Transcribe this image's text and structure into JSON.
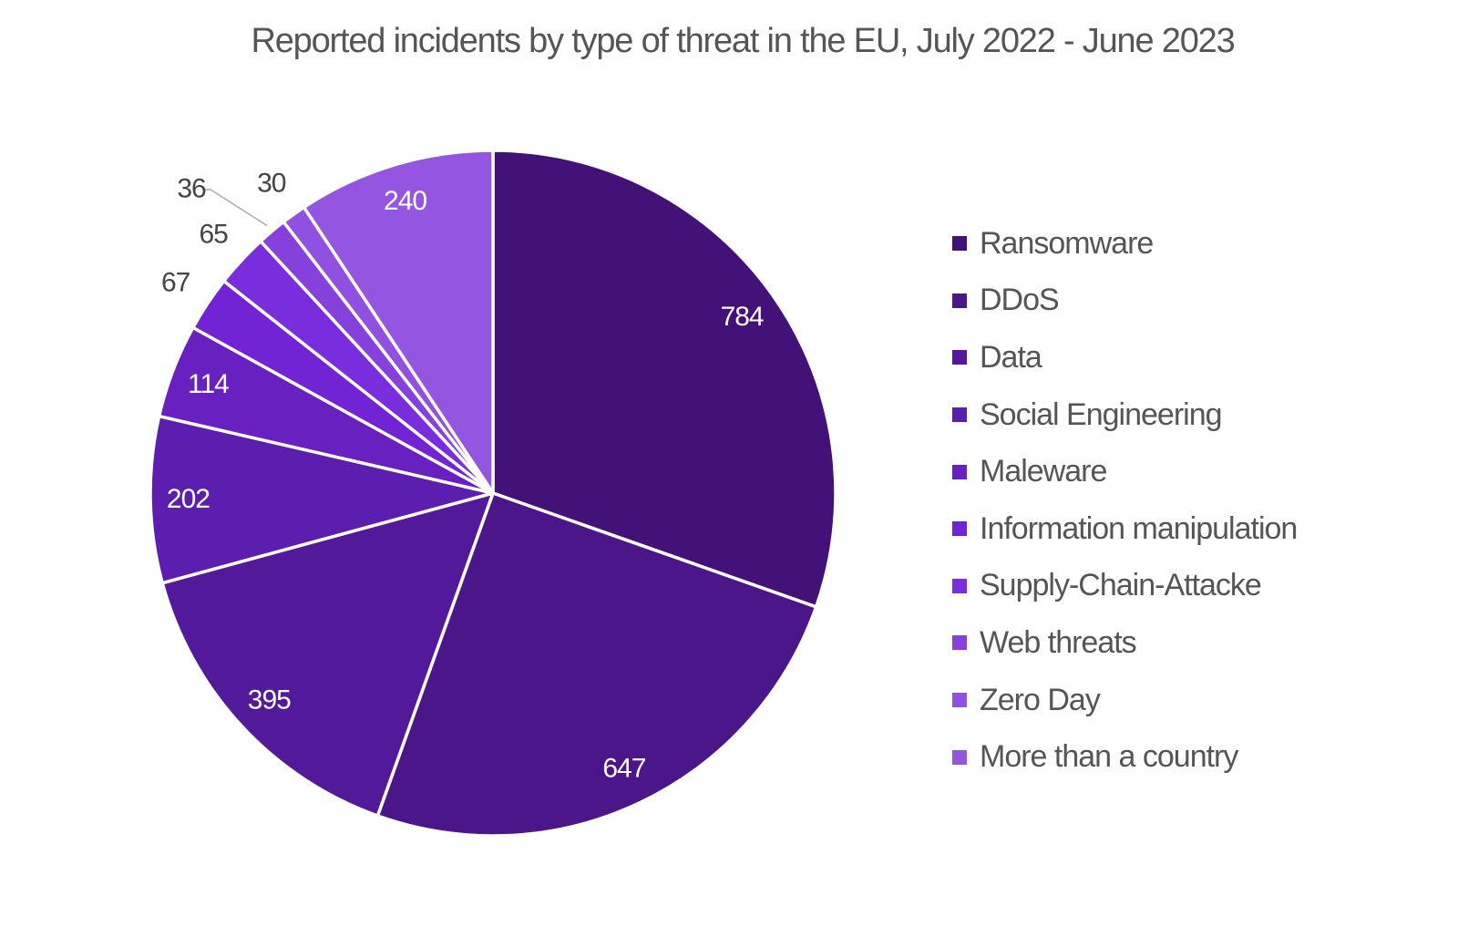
{
  "chart_data": {
    "type": "pie",
    "title": "Reported incidents by type of threat in the EU, July 2022 - June 2023",
    "categories": [
      "Ransomware",
      "DDoS",
      "Data",
      "Social Engineering",
      "Maleware",
      "Information manipulation",
      "Supply-Chain-Attacke",
      "Web threats",
      "Zero Day",
      "More than a country"
    ],
    "values": [
      784,
      647,
      395,
      202,
      114,
      67,
      65,
      36,
      30,
      240
    ],
    "colors": [
      "#421278",
      "#4a168a",
      "#521a9a",
      "#5c1eae",
      "#6820c0",
      "#7224d4",
      "#7a2ddc",
      "#8640dc",
      "#9050e0",
      "#9456e0"
    ],
    "start_angle": "top, clockwise",
    "legend_position": "right"
  }
}
